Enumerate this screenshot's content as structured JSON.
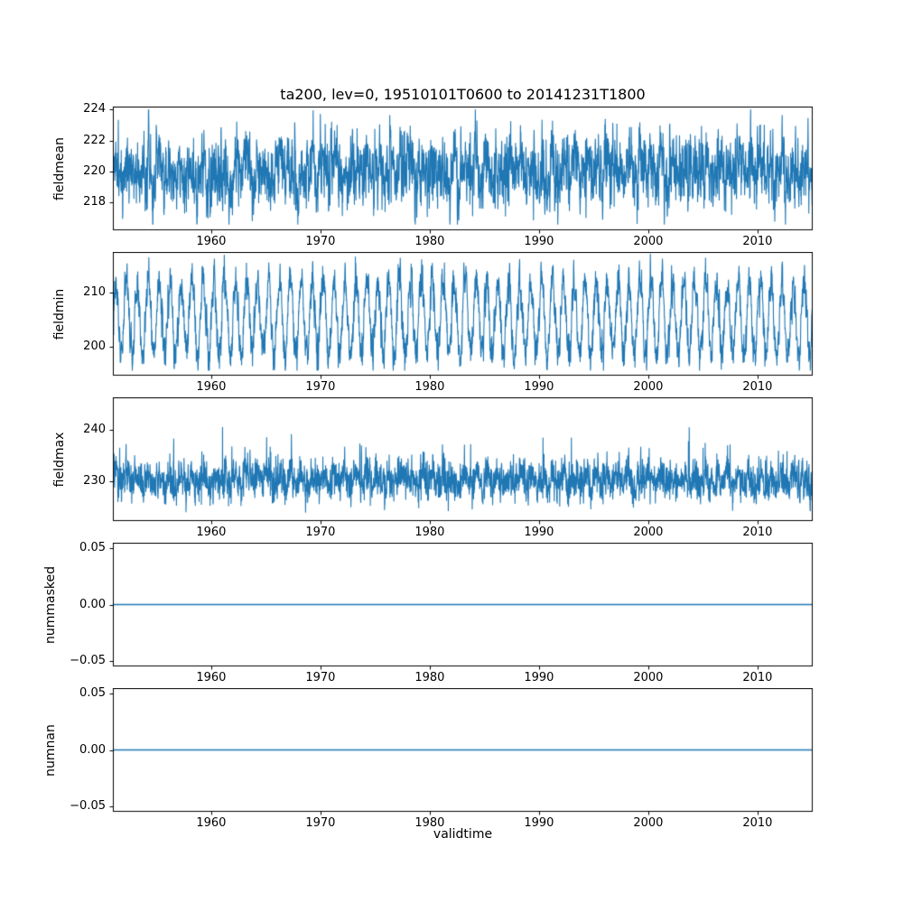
{
  "figure": {
    "title": "ta200, lev=0, 19510101T0600 to 20141231T1800",
    "xlabel": "validtime",
    "x_range": [
      1951.0,
      2015.05
    ],
    "x_ticks": {
      "values": [
        1960,
        1970,
        1980,
        1990,
        2000,
        2010
      ],
      "labels": [
        "1960",
        "1970",
        "1980",
        "1990",
        "2000",
        "2010"
      ]
    },
    "line_color": "#1f77b4",
    "background": "#ffffff",
    "grid": false,
    "legend": "none"
  },
  "chart_data": [
    {
      "type": "line",
      "name": "fieldmean",
      "ylabel": "fieldmean",
      "ylim": [
        216.2,
        224.2
      ],
      "yticks": [
        218,
        220,
        222,
        224
      ],
      "ytick_labels": [
        "218",
        "220",
        "222",
        "224"
      ],
      "series_note": "dense noisy 6-hourly series, band ~218-222.5, extremes ~216.6 to ~223.9",
      "synth": {
        "kind": "noisy",
        "seed": 11,
        "n": 3600,
        "base": 219.9,
        "seasonal_amp": 0.55,
        "ar": 0.5,
        "sigma": 1.0,
        "trend": 0.005,
        "clip": [
          216.6,
          224.0
        ]
      }
    },
    {
      "type": "line",
      "name": "fieldmin",
      "ylabel": "fieldmin",
      "ylim": [
        194.7,
        217.6
      ],
      "yticks": [
        200,
        210
      ],
      "ytick_labels": [
        "200",
        "210"
      ],
      "series_note": "strong annual oscillation between ~196 and ~217",
      "synth": {
        "kind": "noisy",
        "seed": 23,
        "n": 3600,
        "base": 205.5,
        "seasonal_amp": 6.8,
        "ar": 0.45,
        "sigma": 1.6,
        "trend": 0,
        "clip": [
          195.7,
          217.2
        ]
      }
    },
    {
      "type": "line",
      "name": "fieldmax",
      "ylabel": "fieldmax",
      "ylim": [
        222.4,
        246.2
      ],
      "yticks": [
        230,
        240
      ],
      "ytick_labels": [
        "230",
        "240"
      ],
      "series_note": "noisy band ~224-237 with upward spikes to ~245",
      "synth": {
        "kind": "noisy",
        "seed": 37,
        "n": 3600,
        "base": 230.3,
        "seasonal_amp": 1.0,
        "ar": 0.35,
        "sigma": 1.7,
        "trend": 0,
        "spike_prob": 0.03,
        "spike_amp": 9,
        "clip": [
          223.2,
          245.3
        ]
      }
    },
    {
      "type": "line",
      "name": "nummasked",
      "ylabel": "nummasked",
      "ylim": [
        -0.055,
        0.055
      ],
      "yticks": [
        0.05,
        0.0,
        -0.05
      ],
      "ytick_labels": [
        "0.05",
        "0.00",
        "−0.05"
      ],
      "series_note": "constant zero line",
      "synth": {
        "kind": "constant",
        "value": 0
      }
    },
    {
      "type": "line",
      "name": "numnan",
      "ylabel": "numnan",
      "ylim": [
        -0.055,
        0.055
      ],
      "yticks": [
        0.05,
        0.0,
        -0.05
      ],
      "ytick_labels": [
        "0.05",
        "0.00",
        "−0.05"
      ],
      "series_note": "constant zero line",
      "synth": {
        "kind": "constant",
        "value": 0
      }
    }
  ]
}
